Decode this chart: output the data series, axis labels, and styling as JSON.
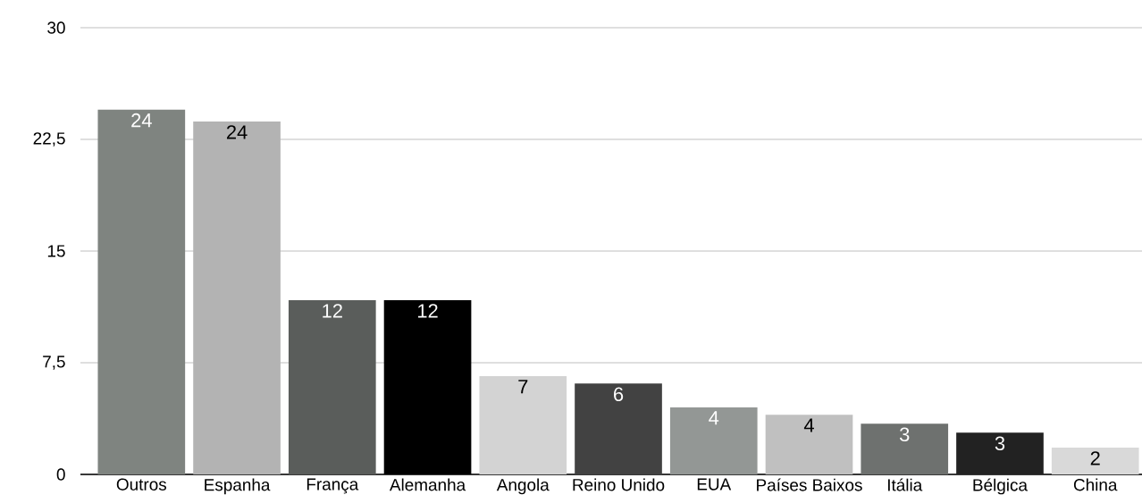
{
  "chart_data": {
    "type": "bar",
    "categories": [
      "Outros",
      "Espanha",
      "França",
      "Alemanha",
      "Angola",
      "Reino Unido",
      "EUA",
      "Países Baixos",
      "Itália",
      "Bélgica",
      "China"
    ],
    "values": [
      24.5,
      23.7,
      11.7,
      11.7,
      6.6,
      6.1,
      4.5,
      4.0,
      3.4,
      2.8,
      1.8
    ],
    "value_labels": [
      "24",
      "24",
      "12",
      "12",
      "7",
      "6",
      "4",
      "4",
      "3",
      "3",
      "2"
    ],
    "colors": [
      "#7f8480",
      "#b3b3b3",
      "#5a5d5b",
      "#000000",
      "#d3d3d3",
      "#424242",
      "#939795",
      "#c0c0c0",
      "#6e716f",
      "#222222",
      "#d9d9d9"
    ],
    "ylim": [
      0,
      30
    ],
    "yticks": [
      0,
      {
        "value": 7.5,
        "label": "7,5"
      },
      15,
      {
        "value": 22.5,
        "label": "22,5"
      },
      30
    ],
    "grid": "y"
  }
}
